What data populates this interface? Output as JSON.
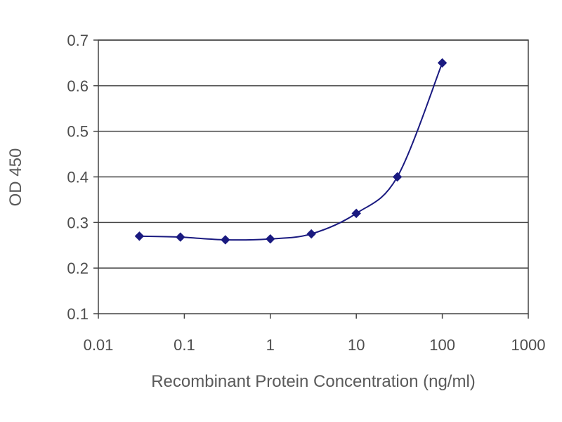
{
  "chart_data": {
    "type": "scatter",
    "title": "",
    "xlabel": "Recombinant Protein Concentration (ng/ml)",
    "ylabel": "OD 450",
    "xscale": "log",
    "xlim": [
      0.01,
      1000
    ],
    "ylim": [
      0.1,
      0.7
    ],
    "grid": "horizontal",
    "legend": "none",
    "x_ticks": [
      "0.01",
      "0.1",
      "1",
      "10",
      "100",
      "1000"
    ],
    "y_ticks": [
      "0.1",
      "0.2",
      "0.3",
      "0.4",
      "0.5",
      "0.6",
      "0.7"
    ],
    "series": [
      {
        "x": [
          0.03,
          0.09,
          0.3,
          1,
          3,
          10,
          30,
          100
        ],
        "y": [
          0.27,
          0.268,
          0.262,
          0.264,
          0.275,
          0.32,
          0.4,
          0.65
        ],
        "color": "#1a1a80",
        "line": "smooth"
      }
    ],
    "colors": {
      "series": "#1a1a80",
      "grid": "#444444",
      "axis": "#444444",
      "text": "#4d4d4d"
    }
  }
}
